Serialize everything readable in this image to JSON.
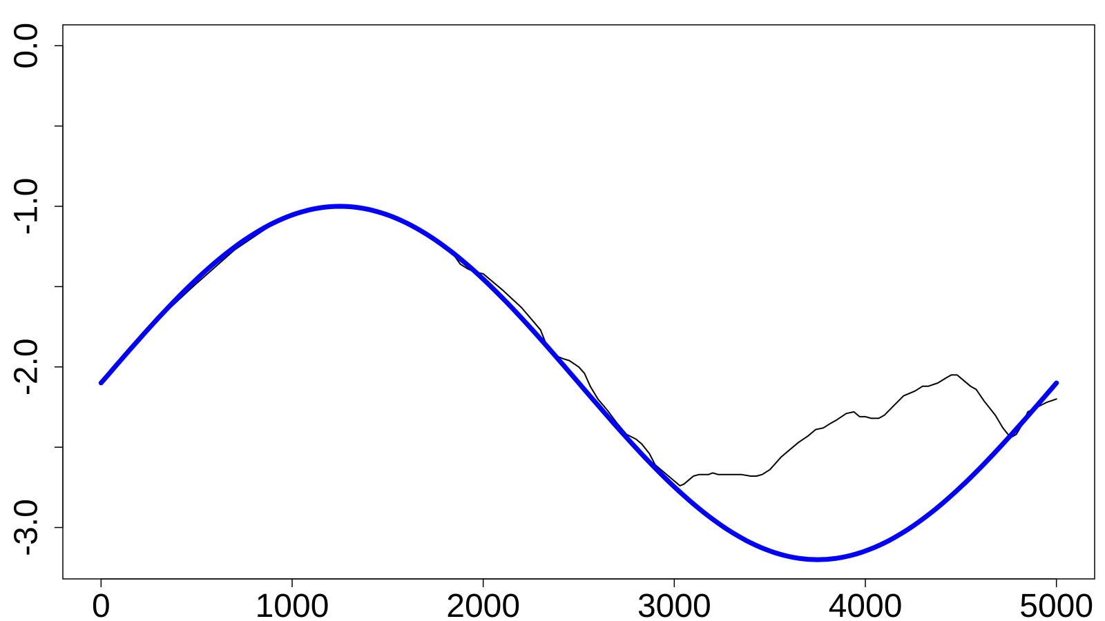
{
  "chart_data": {
    "type": "line",
    "title": "",
    "xlabel": "",
    "ylabel": "",
    "xlim": [
      -200,
      5200
    ],
    "ylim": [
      -3.32,
      0.13
    ],
    "x_ticks": [
      0,
      1000,
      2000,
      3000,
      4000,
      5000
    ],
    "x_tick_labels": [
      "0",
      "1000",
      "2000",
      "3000",
      "4000",
      "5000"
    ],
    "y_ticks": [
      0.0,
      -0.5,
      -1.0,
      -1.5,
      -2.0,
      -2.5,
      -3.0
    ],
    "y_tick_labels": [
      {
        "value": 0.0,
        "label": "0.0"
      },
      {
        "value": -1.0,
        "label": "-1.0"
      },
      {
        "value": -2.0,
        "label": "-2.0"
      },
      {
        "value": -3.0,
        "label": "-3.0"
      }
    ],
    "grid": false,
    "legend": "none",
    "series": [
      {
        "style": "thin",
        "color": "#000000",
        "x": [
          0,
          80,
          180,
          300,
          500,
          700,
          900,
          1100,
          1250,
          1350,
          1420,
          1480,
          1550,
          1650,
          1750,
          1850,
          1880,
          1920,
          1960,
          2000,
          2100,
          2200,
          2300,
          2330,
          2360,
          2380,
          2420,
          2450,
          2500,
          2530,
          2560,
          2600,
          2650,
          2700,
          2750,
          2800,
          2830,
          2870,
          2900,
          2950,
          3000,
          3030,
          3050,
          3080,
          3100,
          3130,
          3180,
          3200,
          3230,
          3260,
          3300,
          3350,
          3400,
          3430,
          3460,
          3500,
          3530,
          3560,
          3600,
          3650,
          3700,
          3740,
          3780,
          3820,
          3850,
          3900,
          3940,
          3970,
          4000,
          4030,
          4070,
          4100,
          4150,
          4200,
          4260,
          4300,
          4330,
          4380,
          4420,
          4450,
          4480,
          4520,
          4550,
          4580,
          4620,
          4680,
          4720,
          4760,
          4790,
          4820,
          4850,
          4900,
          4950,
          5000
        ],
        "y": [
          -2.1,
          -1.98,
          -1.86,
          -1.7,
          -1.48,
          -1.27,
          -1.11,
          -1.02,
          -1.0,
          -1.01,
          -1.03,
          -1.04,
          -1.07,
          -1.13,
          -1.21,
          -1.31,
          -1.36,
          -1.39,
          -1.41,
          -1.42,
          -1.52,
          -1.63,
          -1.77,
          -1.86,
          -1.92,
          -1.93,
          -1.95,
          -1.96,
          -2.0,
          -2.04,
          -2.12,
          -2.2,
          -2.27,
          -2.35,
          -2.42,
          -2.45,
          -2.48,
          -2.54,
          -2.61,
          -2.66,
          -2.71,
          -2.74,
          -2.73,
          -2.7,
          -2.68,
          -2.67,
          -2.67,
          -2.66,
          -2.67,
          -2.67,
          -2.67,
          -2.67,
          -2.68,
          -2.68,
          -2.67,
          -2.64,
          -2.6,
          -2.56,
          -2.52,
          -2.47,
          -2.43,
          -2.39,
          -2.38,
          -2.35,
          -2.33,
          -2.29,
          -2.28,
          -2.31,
          -2.31,
          -2.32,
          -2.32,
          -2.3,
          -2.24,
          -2.18,
          -2.15,
          -2.12,
          -2.12,
          -2.1,
          -2.07,
          -2.05,
          -2.05,
          -2.09,
          -2.12,
          -2.14,
          -2.21,
          -2.3,
          -2.38,
          -2.44,
          -2.42,
          -2.36,
          -2.28,
          -2.25,
          -2.22,
          -2.2
        ]
      },
      {
        "style": "thick",
        "color": "#0000ff",
        "function": "-2.1 + 1.1*sin(2*pi*x/5000)",
        "x_range": [
          0,
          5000
        ],
        "samples": 201
      }
    ]
  }
}
